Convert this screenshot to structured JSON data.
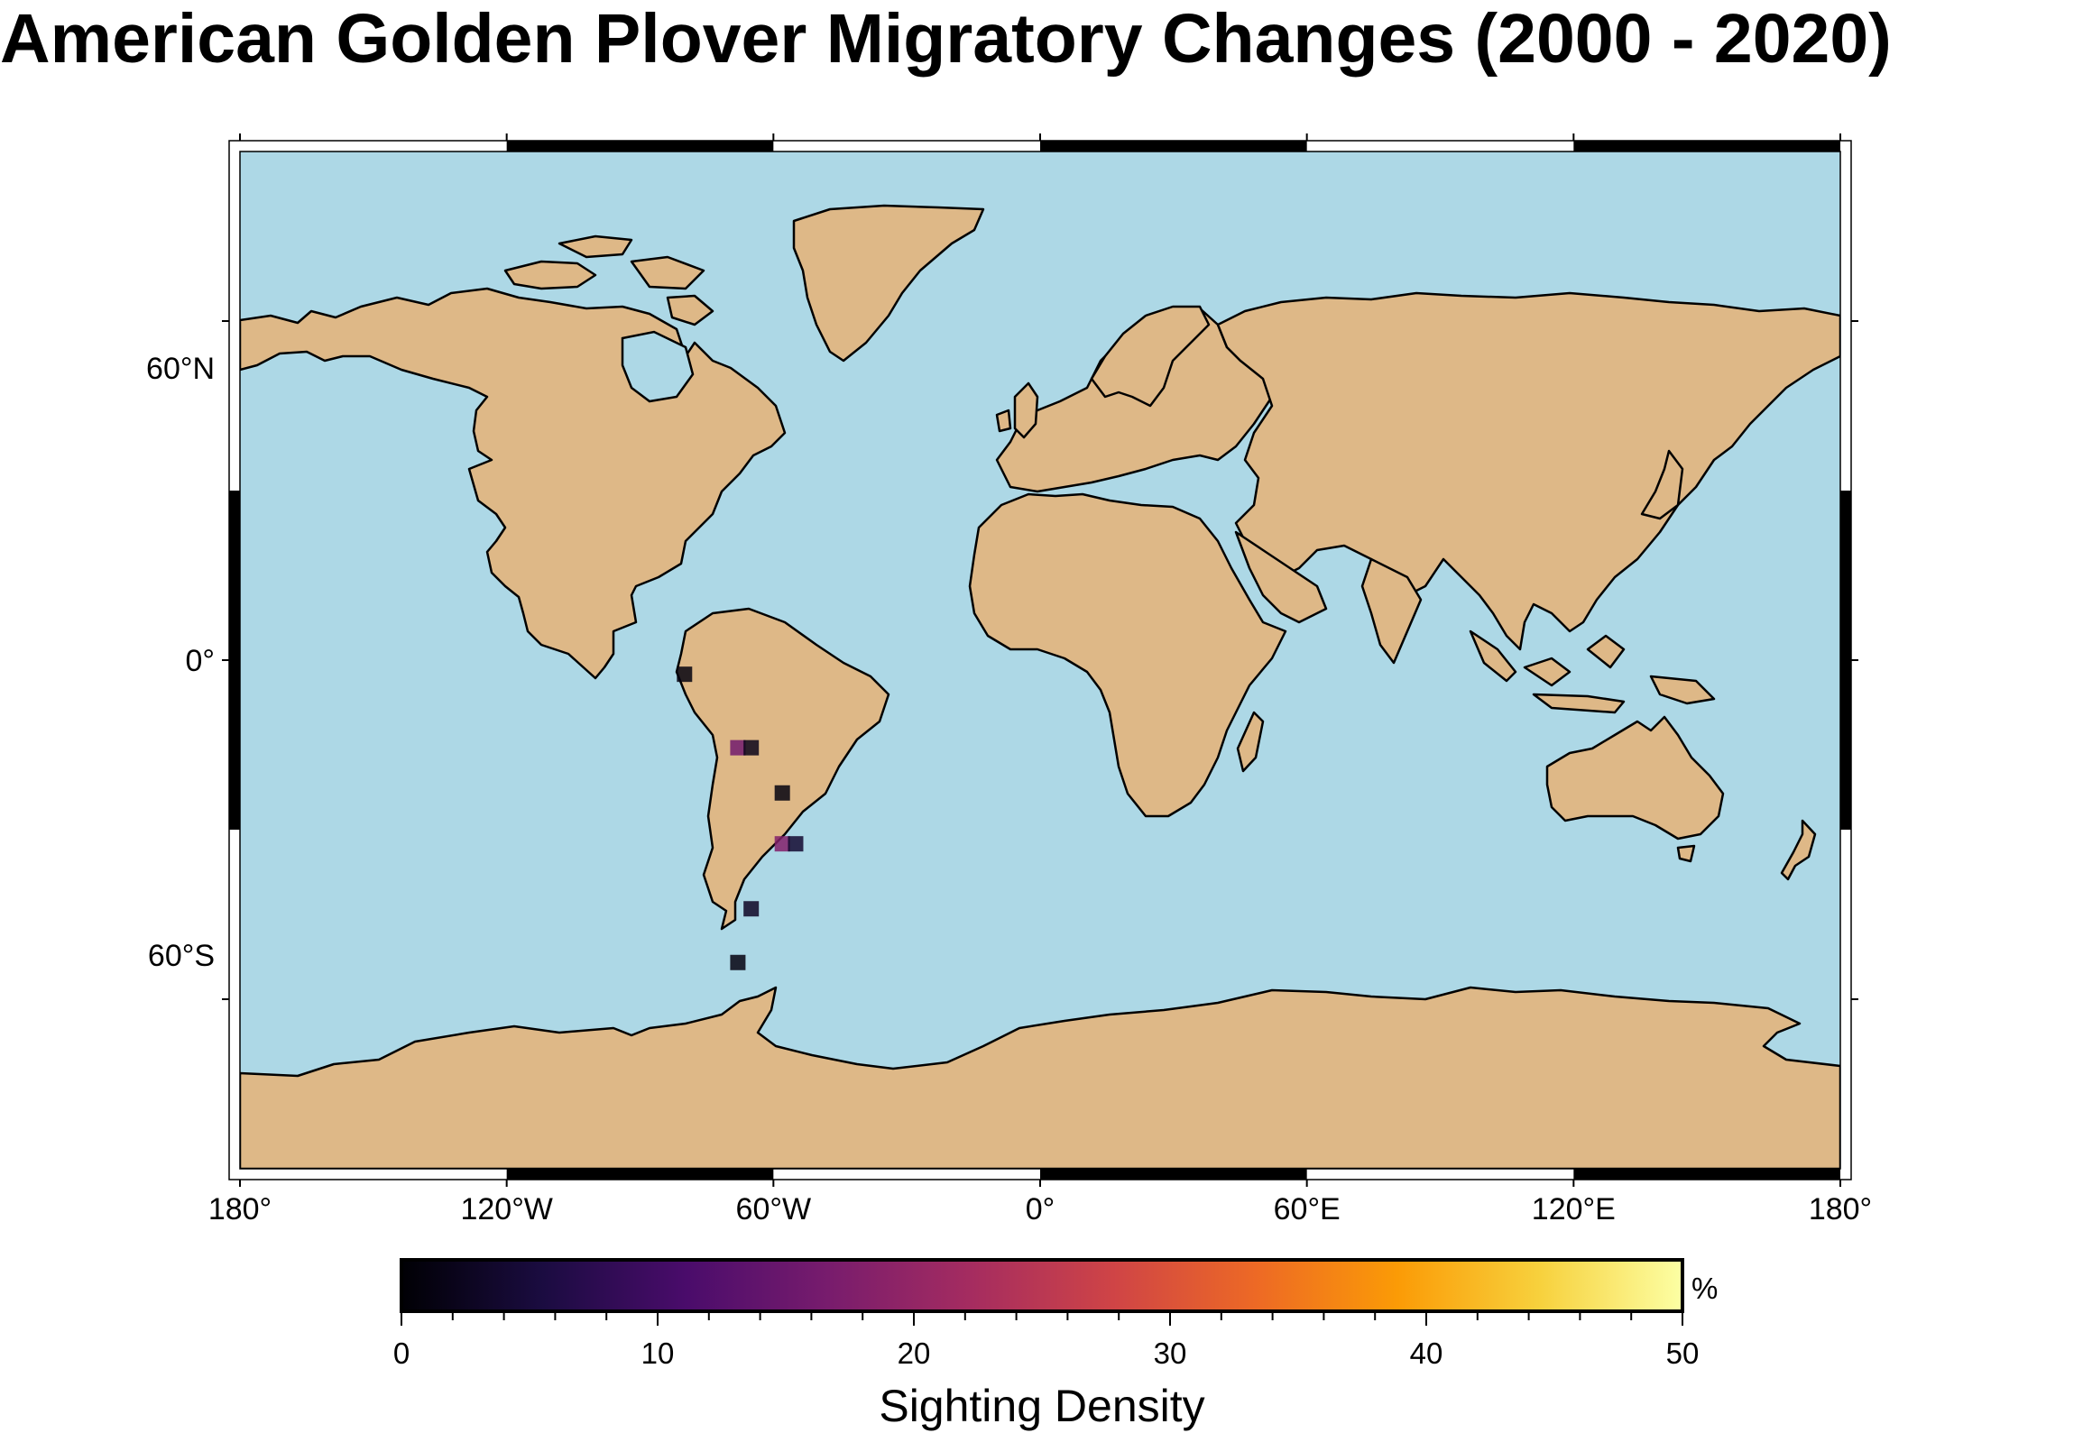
{
  "title": "American Golden Plover Migratory Changes (2000 - 2020)",
  "colors": {
    "ocean": "#add8e6",
    "land": "#deb887",
    "coastline": "#000000",
    "frame": "#000000"
  },
  "map": {
    "projection": "equirectangular",
    "lon_range": [
      -180,
      180
    ],
    "lat_range": [
      -90,
      90
    ],
    "x_ticks": [
      {
        "lon": -180,
        "label": "180°"
      },
      {
        "lon": -120,
        "label": "120°W"
      },
      {
        "lon": -60,
        "label": "60°W"
      },
      {
        "lon": 0,
        "label": "0°"
      },
      {
        "lon": 60,
        "label": "60°E"
      },
      {
        "lon": 120,
        "label": "120°E"
      },
      {
        "lon": 180,
        "label": "180°"
      }
    ],
    "y_ticks": [
      {
        "lat": 60,
        "label": "60°N"
      },
      {
        "lat": 0,
        "label": "0°"
      },
      {
        "lat": -60,
        "label": "60°S"
      }
    ]
  },
  "sightings": [
    {
      "lon": -80,
      "lat": -2.5,
      "density": 1
    },
    {
      "lon": -68,
      "lat": -15.5,
      "density": 16
    },
    {
      "lon": -65,
      "lat": -15.5,
      "density": 2
    },
    {
      "lon": -58,
      "lat": -23.5,
      "density": 1
    },
    {
      "lon": -58,
      "lat": -32.5,
      "density": 18
    },
    {
      "lon": -55,
      "lat": -32.5,
      "density": 4
    },
    {
      "lon": -65,
      "lat": -44,
      "density": 3
    },
    {
      "lon": -68,
      "lat": -53.5,
      "density": 1
    }
  ],
  "colorbar": {
    "title": "Sighting Density",
    "unit": "%",
    "min": 0,
    "max": 50,
    "major_ticks": [
      0,
      10,
      20,
      30,
      40,
      50
    ],
    "tick_labels": [
      "0",
      "10",
      "20",
      "30",
      "40",
      "50"
    ],
    "colormap": "inferno",
    "stops": [
      "#000004",
      "#1b0c41",
      "#4a0c6b",
      "#781c6d",
      "#a52c60",
      "#cf4446",
      "#ed6925",
      "#fb9b06",
      "#f7d13d",
      "#fcffa4"
    ]
  }
}
